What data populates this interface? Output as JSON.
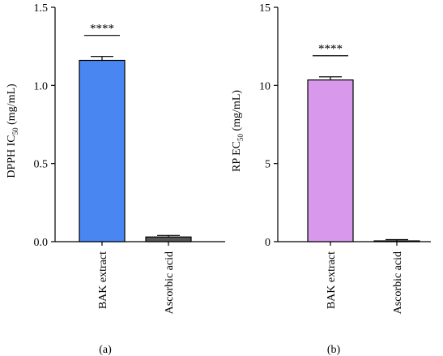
{
  "chart_data": [
    {
      "type": "bar",
      "panel_label": "(a)",
      "ylabel": "DPPH IC",
      "ylabel_sub": "50",
      "ylabel_unit": "(mg/mL)",
      "categories": [
        "BAK extract",
        "Ascorbic acid"
      ],
      "values": [
        1.16,
        0.03
      ],
      "errors": [
        0.025,
        0.01
      ],
      "colors": [
        "#4a86f2",
        "#555555"
      ],
      "ylim": [
        0,
        1.5
      ],
      "yticks": [
        0.0,
        0.5,
        1.0,
        1.5
      ],
      "ytick_labels": [
        "0.0",
        "0.5",
        "1.0",
        "1.5"
      ],
      "significance": "****",
      "grid": false
    },
    {
      "type": "bar",
      "panel_label": "(b)",
      "ylabel": "RP EC",
      "ylabel_sub": "50",
      "ylabel_unit": "(mg/mL)",
      "categories": [
        "BAK extract",
        "Ascorbic acid"
      ],
      "values": [
        10.35,
        0.05
      ],
      "errors": [
        0.2,
        0.08
      ],
      "colors": [
        "#d899ec",
        "#555555"
      ],
      "ylim": [
        0,
        15
      ],
      "yticks": [
        0,
        5,
        10,
        15
      ],
      "ytick_labels": [
        "0",
        "5",
        "10",
        "15"
      ],
      "significance": "****",
      "grid": false
    }
  ]
}
